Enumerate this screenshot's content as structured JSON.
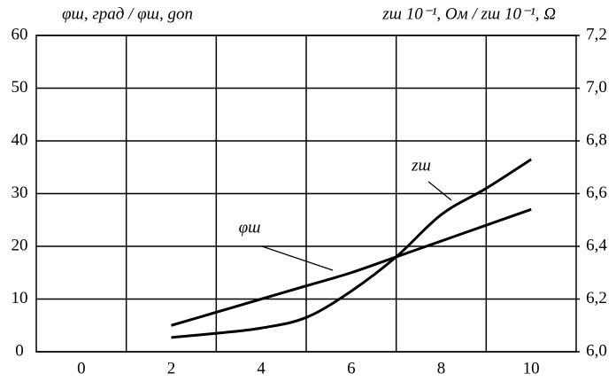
{
  "chart_data": {
    "type": "line",
    "y_label": "φш, град / φш, gon",
    "y2_label": "zш 10⁻¹, Ом / zш 10⁻¹, Ω",
    "x": [
      2,
      3,
      4,
      5,
      6,
      7,
      8,
      9,
      10
    ],
    "series": [
      {
        "name": "φш",
        "color": "#000000",
        "values": [
          5,
          7.5,
          10,
          12.5,
          15,
          18,
          21,
          24,
          27
        ]
      },
      {
        "name": "zш",
        "color": "#000000",
        "axis": "y2",
        "values": [
          6.054,
          6.07,
          6.09,
          6.13,
          6.23,
          6.36,
          6.52,
          6.62,
          6.73
        ]
      }
    ],
    "xlim": [
      -1,
      11
    ],
    "xticks": [
      0,
      2,
      4,
      6,
      8,
      10
    ],
    "xgrid": [
      1,
      3,
      5,
      7,
      9
    ],
    "ylim": [
      0,
      60
    ],
    "yticks": [
      0,
      10,
      20,
      30,
      40,
      50,
      60
    ],
    "y2lim": [
      6.0,
      7.2
    ],
    "y2ticks": [
      {
        "value": 6.0,
        "label": "6,0"
      },
      {
        "value": 6.2,
        "label": "6,2"
      },
      {
        "value": 6.4,
        "label": "6,4"
      },
      {
        "value": 6.6,
        "label": "6,6"
      },
      {
        "value": 6.8,
        "label": "6,8"
      },
      {
        "value": 7.0,
        "label": "7,0"
      },
      {
        "value": 7.2,
        "label": "7,2"
      }
    ],
    "grid": true
  }
}
